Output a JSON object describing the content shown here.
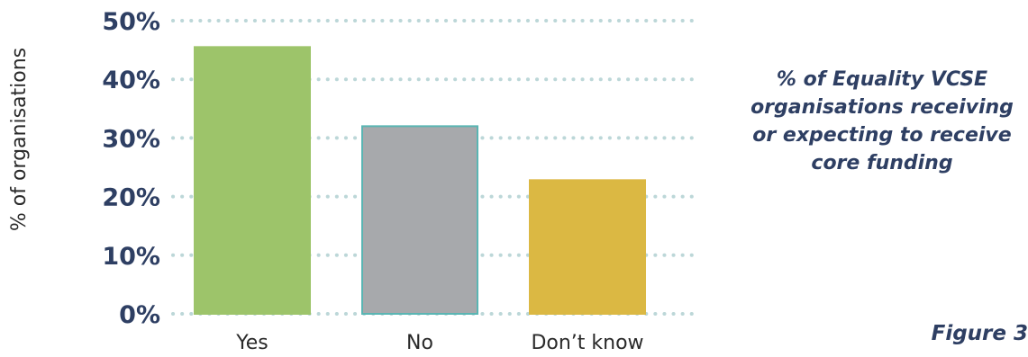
{
  "chart_data": {
    "type": "bar",
    "categories": [
      "Yes",
      "No",
      "Don’t know"
    ],
    "values": [
      45.5,
      32,
      22.8
    ],
    "bar_colors": [
      "#9dc46a",
      "#a7a9ac",
      "#dbb843"
    ],
    "bar_outline_colors": [
      "#9dc46a",
      "#5ab5b3",
      "#dbb843"
    ],
    "yticks": [
      "0%",
      "10%",
      "20%",
      "30%",
      "40%",
      "50%"
    ],
    "ylim": [
      0,
      50
    ],
    "ylabel": "% of organisations",
    "grid": true,
    "grid_style": "dotted",
    "grid_color": "#bcd7d8",
    "title": "% of Equality VCSE organisations receiving or expecting to receive core funding",
    "title_lines": [
      "% of Equality VCSE",
      "organisations receiving",
      "or expecting to receive",
      "core funding"
    ]
  },
  "figure_label": "Figure 3"
}
